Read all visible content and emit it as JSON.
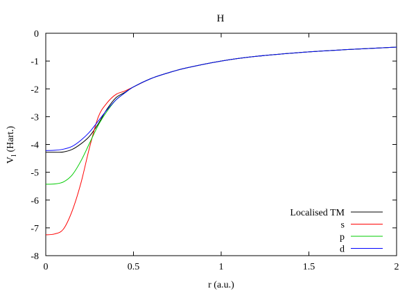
{
  "chart_data": {
    "type": "line",
    "title": "H",
    "xlabel": "r (a.u.)",
    "ylabel": "V",
    "ylabel_sub": "l",
    "ylabel_unit": " (Hart.)",
    "xlim": [
      0,
      2
    ],
    "ylim": [
      -8,
      0
    ],
    "x_ticks": [
      {
        "value": 0,
        "label": "0"
      },
      {
        "value": 0.5,
        "label": "0.5"
      },
      {
        "value": 1,
        "label": "1"
      },
      {
        "value": 1.5,
        "label": "1.5"
      },
      {
        "value": 2,
        "label": "2"
      }
    ],
    "y_ticks": [
      {
        "value": 0,
        "label": "0"
      },
      {
        "value": -1,
        "label": "-1"
      },
      {
        "value": -2,
        "label": "-2"
      },
      {
        "value": -3,
        "label": "-3"
      },
      {
        "value": -4,
        "label": "-4"
      },
      {
        "value": -5,
        "label": "-5"
      },
      {
        "value": -6,
        "label": "-6"
      },
      {
        "value": -7,
        "label": "-7"
      },
      {
        "value": -8,
        "label": "-8"
      }
    ],
    "grid": false,
    "legend_position": "bottom-right",
    "series": [
      {
        "name": "Localised TM",
        "color": "#000000",
        "x": [
          0,
          0.05,
          0.1,
          0.15,
          0.2,
          0.25,
          0.3,
          0.35,
          0.4,
          0.45,
          0.5,
          0.6,
          0.7,
          0.8,
          1.0,
          1.2,
          1.5,
          1.8,
          2.0
        ],
        "y": [
          -4.28,
          -4.28,
          -4.27,
          -4.18,
          -3.98,
          -3.7,
          -3.25,
          -2.72,
          -2.32,
          -2.13,
          -1.93,
          -1.63,
          -1.42,
          -1.25,
          -1.0,
          -0.83,
          -0.67,
          -0.56,
          -0.5
        ]
      },
      {
        "name": "s",
        "color": "#ff0000",
        "x": [
          0,
          0.05,
          0.1,
          0.15,
          0.2,
          0.25,
          0.3,
          0.35,
          0.4,
          0.45,
          0.5,
          0.6,
          0.7,
          0.8,
          1.0,
          1.2,
          1.5,
          1.8,
          2.0
        ],
        "y": [
          -7.25,
          -7.22,
          -7.05,
          -6.4,
          -5.4,
          -4.1,
          -3.0,
          -2.5,
          -2.2,
          -2.08,
          -1.93,
          -1.63,
          -1.42,
          -1.25,
          -1.0,
          -0.83,
          -0.67,
          -0.56,
          -0.5
        ]
      },
      {
        "name": "p",
        "color": "#00cc00",
        "x": [
          0,
          0.05,
          0.1,
          0.15,
          0.2,
          0.25,
          0.3,
          0.35,
          0.4,
          0.45,
          0.5,
          0.6,
          0.7,
          0.8,
          1.0,
          1.2,
          1.5,
          1.8,
          2.0
        ],
        "y": [
          -5.43,
          -5.42,
          -5.35,
          -5.1,
          -4.6,
          -3.95,
          -3.3,
          -2.8,
          -2.4,
          -2.15,
          -1.93,
          -1.63,
          -1.42,
          -1.25,
          -1.0,
          -0.83,
          -0.67,
          -0.56,
          -0.5
        ]
      },
      {
        "name": "d",
        "color": "#0000ff",
        "x": [
          0,
          0.05,
          0.1,
          0.15,
          0.2,
          0.25,
          0.3,
          0.35,
          0.4,
          0.45,
          0.5,
          0.6,
          0.7,
          0.8,
          1.0,
          1.2,
          1.5,
          1.8,
          2.0
        ],
        "y": [
          -4.22,
          -4.21,
          -4.17,
          -4.07,
          -3.85,
          -3.55,
          -3.15,
          -2.75,
          -2.4,
          -2.15,
          -1.93,
          -1.63,
          -1.42,
          -1.25,
          -1.0,
          -0.83,
          -0.67,
          -0.56,
          -0.5
        ]
      }
    ]
  }
}
